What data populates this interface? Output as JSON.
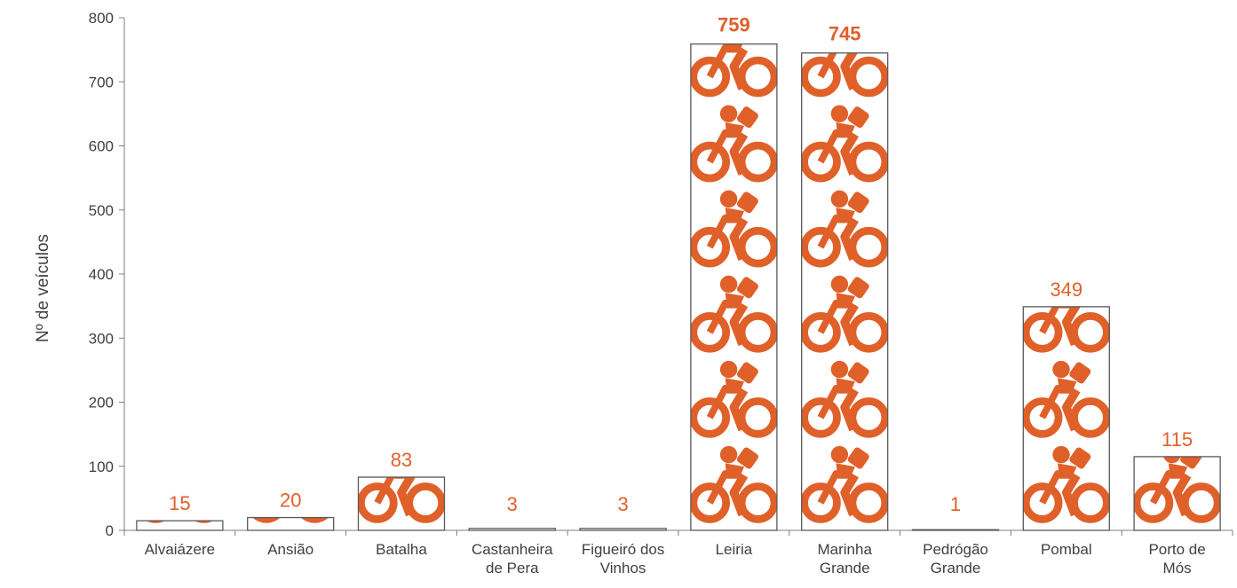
{
  "chart_data": {
    "type": "bar",
    "categories": [
      [
        "Alvaiázere"
      ],
      [
        "Ansião"
      ],
      [
        "Batalha"
      ],
      [
        "Castanheira",
        "de Pera"
      ],
      [
        "Figueiró dos",
        "Vinhos"
      ],
      [
        "Leiria"
      ],
      [
        "Marinha",
        "Grande"
      ],
      [
        "Pedrógão",
        "Grande"
      ],
      [
        "Pombal"
      ],
      [
        "Porto de",
        "Mós"
      ]
    ],
    "values": [
      15,
      20,
      83,
      3,
      3,
      759,
      745,
      1,
      349,
      115
    ],
    "bold_labels": [
      false,
      false,
      false,
      false,
      false,
      true,
      true,
      false,
      false,
      false
    ],
    "title": "",
    "xlabel": "",
    "ylabel": "Nº de veículos",
    "ylim": [
      0,
      800
    ],
    "yticks": [
      0,
      100,
      200,
      300,
      400,
      500,
      600,
      700,
      800
    ],
    "grid": false,
    "bar_fill": "pictograph bicycle icons",
    "icon": "cyclist-icon",
    "icon_units_per_icon": 133,
    "colors": {
      "accent": "#E0602A",
      "bar_outline": "#595959",
      "axis": "#7F7F7F",
      "text": "#404040"
    }
  }
}
